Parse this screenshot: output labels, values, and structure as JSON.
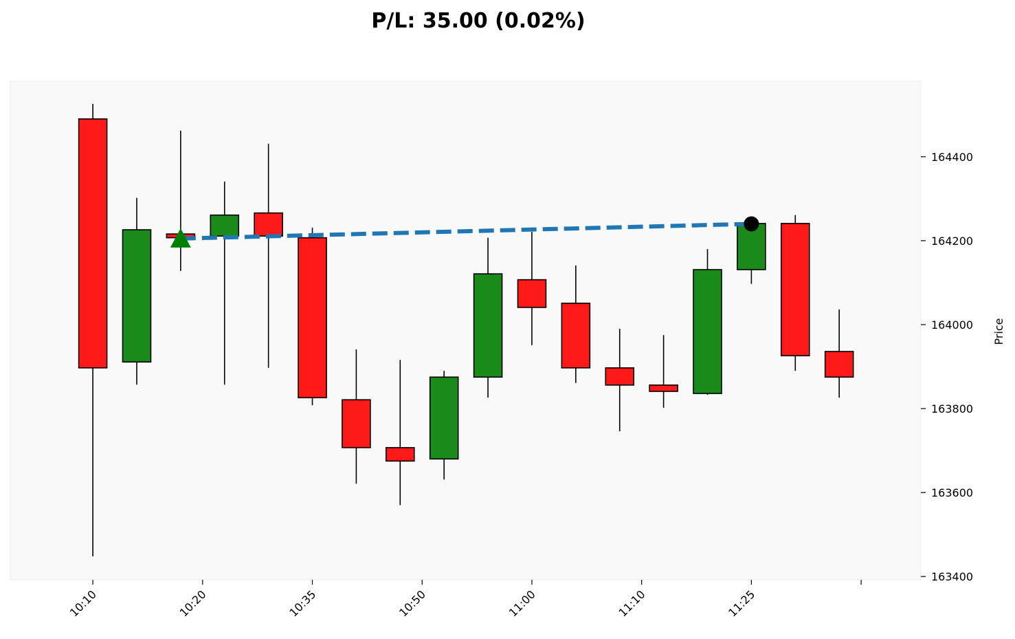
{
  "chart_data": {
    "type": "candlestick",
    "title": "P/L: 35.00 (0.02%)",
    "xlabel": "",
    "ylabel": "Price",
    "ylim": [
      163392,
      164580
    ],
    "yticks": [
      163400,
      163600,
      163800,
      164000,
      164200,
      164400
    ],
    "xtick_labels": [
      "10:10",
      "10:20",
      "10:35",
      "10:50",
      "11:00",
      "11:10",
      "11:25",
      ""
    ],
    "xtick_positions": [
      0,
      2.5,
      5,
      7.5,
      10,
      12.5,
      15,
      17.5
    ],
    "grid": false,
    "colors": {
      "up": "#1a8a1a",
      "down": "#ff1a1a",
      "trade_line": "#1f77b4",
      "entry_marker": "#008000",
      "exit_marker": "#000000",
      "plot_bg": "#f9f9f9"
    },
    "candles": [
      {
        "open": 164490,
        "high": 164526,
        "low": 163448,
        "close": 163897
      },
      {
        "open": 163911,
        "high": 164302,
        "low": 163857,
        "close": 164226
      },
      {
        "open": 164216,
        "high": 164462,
        "low": 164128,
        "close": 164207
      },
      {
        "open": 164211,
        "high": 164341,
        "low": 163857,
        "close": 164261
      },
      {
        "open": 164266,
        "high": 164431,
        "low": 163897,
        "close": 164211
      },
      {
        "open": 164207,
        "high": 164231,
        "low": 163808,
        "close": 163826
      },
      {
        "open": 163821,
        "high": 163941,
        "low": 163621,
        "close": 163707
      },
      {
        "open": 163707,
        "high": 163916,
        "low": 163570,
        "close": 163675
      },
      {
        "open": 163680,
        "high": 163890,
        "low": 163631,
        "close": 163875
      },
      {
        "open": 163875,
        "high": 164207,
        "low": 163826,
        "close": 164121
      },
      {
        "open": 164107,
        "high": 164221,
        "low": 163951,
        "close": 164041
      },
      {
        "open": 164051,
        "high": 164141,
        "low": 163861,
        "close": 163897
      },
      {
        "open": 163897,
        "high": 163990,
        "low": 163746,
        "close": 163856
      },
      {
        "open": 163856,
        "high": 163975,
        "low": 163802,
        "close": 163841
      },
      {
        "open": 163836,
        "high": 164180,
        "low": 163833,
        "close": 164131
      },
      {
        "open": 164131,
        "high": 164241,
        "low": 164097,
        "close": 164241
      },
      {
        "open": 164241,
        "high": 164261,
        "low": 163890,
        "close": 163926
      },
      {
        "open": 163936,
        "high": 164036,
        "low": 163826,
        "close": 163875
      }
    ],
    "trade": {
      "entry_index": 2,
      "entry_price": 164205,
      "exit_index": 15,
      "exit_price": 164240,
      "pnl": 35.0,
      "pnl_pct": 0.02
    }
  }
}
